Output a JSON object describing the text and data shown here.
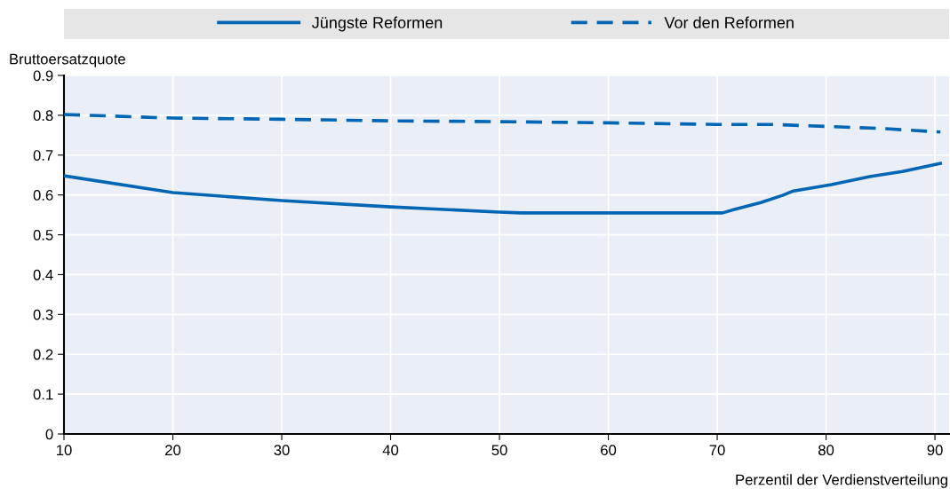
{
  "chart_data": {
    "type": "line",
    "xlabel": "Perzentil der Verdienstverteilung",
    "ylabel": "Bruttoersatzquote",
    "xlim": [
      10,
      91.3
    ],
    "xticks": [
      10,
      20,
      30,
      40,
      50,
      60,
      70,
      80,
      90
    ],
    "ylim": [
      0,
      0.9
    ],
    "yticks": [
      0,
      0.1,
      0.2,
      0.3,
      0.4,
      0.5,
      0.6,
      0.7,
      0.8,
      0.9
    ],
    "grid": true,
    "legend": "top",
    "marker": "none",
    "series": [
      {
        "name": "Jüngste Reformen",
        "color": "#0066b3",
        "line_style": "solid",
        "x": [
          10,
          20,
          30,
          40,
          50,
          52,
          70.5,
          71.5,
          74,
          76,
          77,
          80.5,
          84,
          87,
          90.5
        ],
        "values": [
          0.648,
          0.606,
          0.586,
          0.57,
          0.557,
          0.555,
          0.555,
          0.563,
          0.581,
          0.599,
          0.61,
          0.626,
          0.646,
          0.659,
          0.679
        ]
      },
      {
        "name": "Vor den Reformen",
        "color": "#0066b3",
        "line_style": "dashed",
        "x": [
          10,
          20,
          30,
          40,
          50,
          60,
          70,
          75,
          80,
          85,
          90.5
        ],
        "values": [
          0.802,
          0.793,
          0.79,
          0.786,
          0.784,
          0.781,
          0.777,
          0.777,
          0.772,
          0.767,
          0.758
        ]
      }
    ]
  }
}
